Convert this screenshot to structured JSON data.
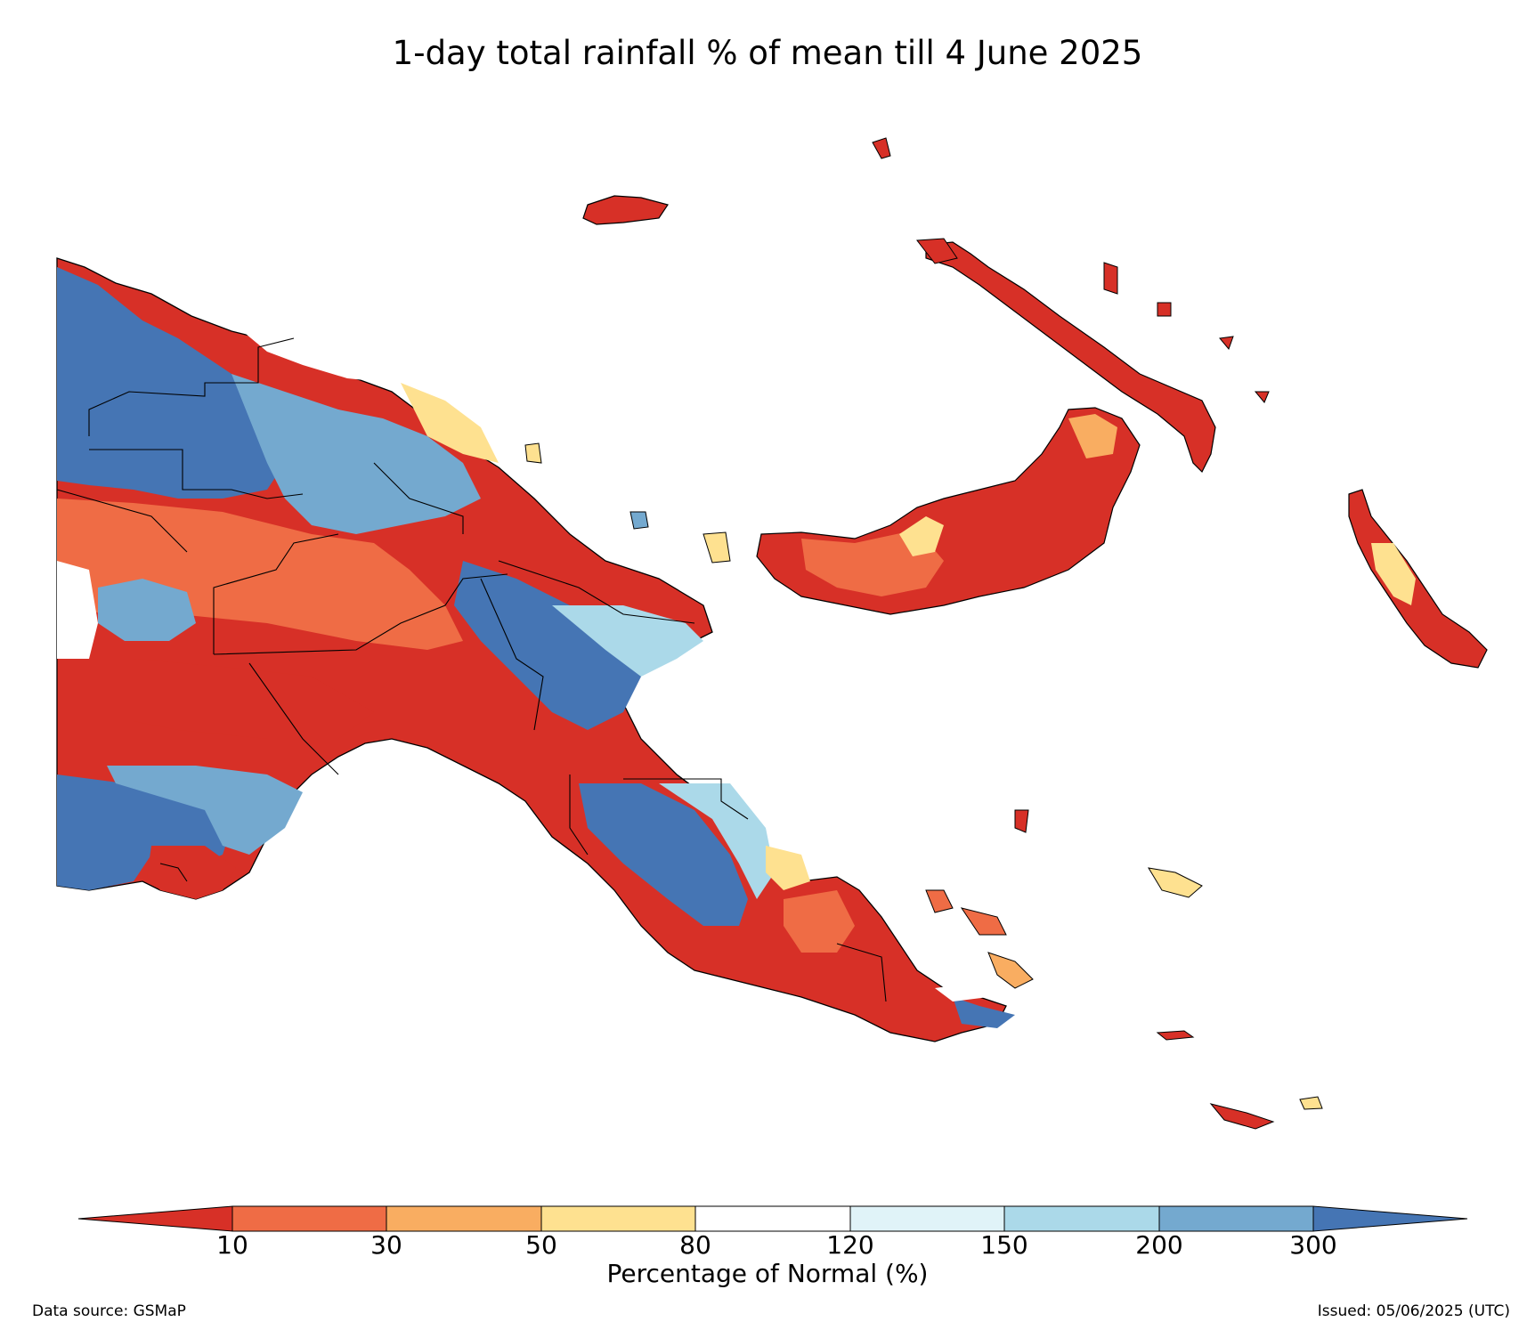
{
  "title": "1-day total rainfall % of mean till 4 June 2025",
  "colorbar": {
    "label": "Percentage of Normal (%)",
    "ticks": [
      "10",
      "30",
      "50",
      "80",
      "120",
      "150",
      "200",
      "300"
    ],
    "colors": [
      "#d73027",
      "#ef6c45",
      "#f9ad61",
      "#fee190",
      "#ffffff",
      "#e0f3f8",
      "#abd9e9",
      "#74a9cf",
      "#4575b4"
    ]
  },
  "footer": {
    "source": "Data source: GSMaP",
    "issued": "Issued: 05/06/2025 (UTC)"
  }
}
